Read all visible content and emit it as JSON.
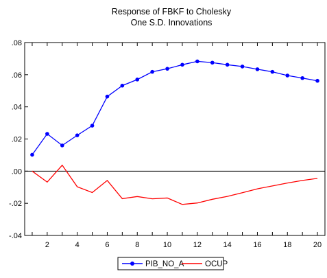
{
  "chart_data": {
    "type": "line",
    "title": "Response of FBKF to Cholesky",
    "subtitle": "One S.D. Innovations",
    "xlabel": "",
    "ylabel": "",
    "x": [
      1,
      2,
      3,
      4,
      5,
      6,
      7,
      8,
      9,
      10,
      11,
      12,
      13,
      14,
      15,
      16,
      17,
      18,
      19,
      20
    ],
    "xlim": [
      0.5,
      20.5
    ],
    "ylim": [
      -0.04,
      0.08
    ],
    "x_ticks": [
      2,
      4,
      6,
      8,
      10,
      12,
      14,
      16,
      18,
      20
    ],
    "x_tick_labels": [
      "2",
      "4",
      "6",
      "8",
      "10",
      "12",
      "14",
      "16",
      "18",
      "20"
    ],
    "y_ticks": [
      -0.04,
      -0.02,
      0.0,
      0.02,
      0.04,
      0.06,
      0.08
    ],
    "y_tick_labels": [
      "-.04",
      "-.02",
      ".00",
      ".02",
      ".04",
      ".06",
      ".08"
    ],
    "zero_line": true,
    "grid": false,
    "legend_position": "bottom-center",
    "series": [
      {
        "name": "PIB_NO_A",
        "color": "#0000ff",
        "marker": "circle",
        "values": [
          0.0102,
          0.0232,
          0.016,
          0.0223,
          0.0283,
          0.0464,
          0.0532,
          0.057,
          0.0618,
          0.0637,
          0.0662,
          0.0683,
          0.0675,
          0.0662,
          0.0651,
          0.0634,
          0.0618,
          0.0595,
          0.0579,
          0.0562
        ]
      },
      {
        "name": "OCUP",
        "color": "#ff0000",
        "marker": "none",
        "values": [
          0.0,
          -0.0068,
          0.0037,
          -0.0097,
          -0.0133,
          -0.0058,
          -0.0171,
          -0.0158,
          -0.0172,
          -0.0167,
          -0.0207,
          -0.0198,
          -0.0175,
          -0.0157,
          -0.0134,
          -0.011,
          -0.0092,
          -0.0074,
          -0.0058,
          -0.0045
        ]
      }
    ]
  }
}
